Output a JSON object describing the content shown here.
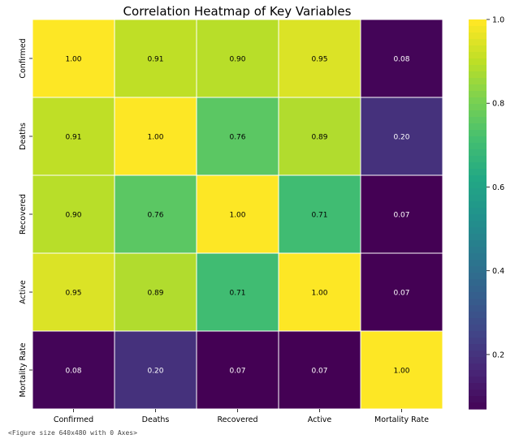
{
  "chart_data": {
    "type": "heatmap",
    "title": "Correlation Heatmap of Key Variables",
    "xlabel": "",
    "ylabel": "",
    "rows": [
      "Confirmed",
      "Deaths",
      "Recovered",
      "Active",
      "Mortality Rate"
    ],
    "cols": [
      "Confirmed",
      "Deaths",
      "Recovered",
      "Active",
      "Mortality Rate"
    ],
    "values": [
      [
        1.0,
        0.91,
        0.9,
        0.95,
        0.08
      ],
      [
        0.91,
        1.0,
        0.76,
        0.89,
        0.2
      ],
      [
        0.9,
        0.76,
        1.0,
        0.71,
        0.07
      ],
      [
        0.95,
        0.89,
        0.71,
        1.0,
        0.07
      ],
      [
        0.08,
        0.2,
        0.07,
        0.07,
        1.0
      ]
    ],
    "colormap": "viridis",
    "colorbar": {
      "vmin": 0.07,
      "vmax": 1.0,
      "ticks": [
        "0.2",
        "0.4",
        "0.6",
        "0.8",
        "1.0"
      ]
    },
    "annotations_format": "two-decimals"
  },
  "footer_note": "<Figure size 640x480 with 0 Axes>"
}
